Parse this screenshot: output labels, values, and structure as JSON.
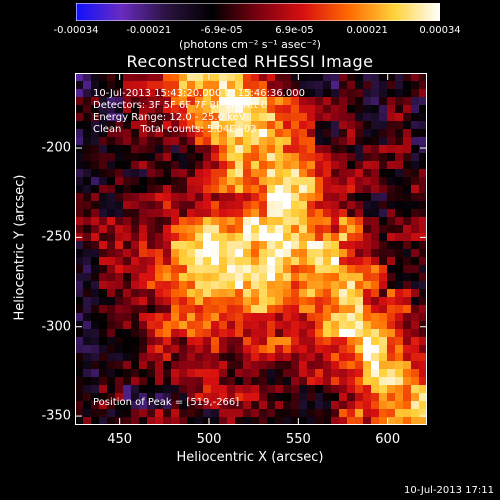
{
  "colorbar": {
    "ticks": [
      "-0.00034",
      "-0.00021",
      "-6.9e-05",
      "6.9e-05",
      "0.00021",
      "0.00034"
    ],
    "units": "(photons cm⁻² s⁻¹ asec⁻²)",
    "colors": [
      "#1010ff",
      "#6a2cc0",
      "#2a1240",
      "#000000",
      "#7a0010",
      "#d81010",
      "#ff6a00",
      "#ffd23a",
      "#ffffff"
    ]
  },
  "chart_data": {
    "type": "heatmap",
    "title": "Reconstructed RHESSI Image",
    "xlabel": "Heliocentric X (arcsec)",
    "ylabel": "Heliocentric Y (arcsec)",
    "xlim": [
      425,
      622
    ],
    "ylim": [
      -355,
      -158
    ],
    "x_ticks": [
      450,
      500,
      550,
      600
    ],
    "y_ticks": [
      -200,
      -250,
      -300,
      -350
    ],
    "value_range": [
      -0.00034,
      0.00034
    ],
    "peak": [
      519,
      -266
    ],
    "annotations": [
      "10-Jul-2013 15:43:20.000 to 15:46:36.000",
      "Detectors: 3F 5F 6F 7F 8F 9F, Att 0",
      "Energy Range: 12.0 - 25.0 keV",
      "Clean      Total counts: 5.04E+03"
    ],
    "peak_label": "Position of Peak = [519,-266]"
  },
  "footer": {
    "timestamp": "10-Jul-2013 17:11"
  }
}
